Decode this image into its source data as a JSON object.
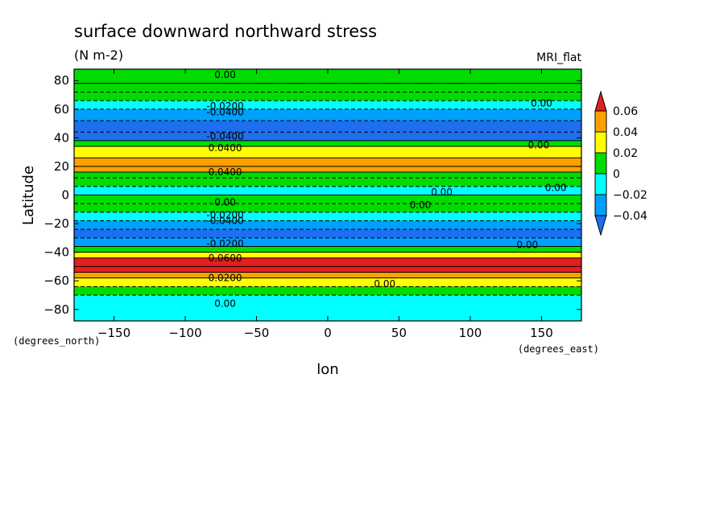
{
  "chart_data": {
    "type": "heatmap",
    "title": "surface downward northward stress",
    "units": "(N m-2)",
    "model_label": "MRI_flat",
    "xlabel": "lon",
    "ylabel": "Latitude",
    "x_units": "(degrees_east)",
    "y_units": "(degrees_north)",
    "xlim": [
      -178,
      178
    ],
    "ylim": [
      -88,
      88
    ],
    "x_ticks": [
      -150,
      -100,
      -50,
      0,
      50,
      100,
      150
    ],
    "y_ticks": [
      -80,
      -60,
      -40,
      -20,
      0,
      20,
      40,
      60,
      80
    ],
    "colorbar": {
      "levels": [
        -0.06,
        -0.04,
        -0.02,
        0,
        0.02,
        0.04,
        0.06
      ],
      "tick_labels": [
        "0.06",
        "0.04",
        "0.02",
        "0",
        "-0.02",
        "-0.04"
      ],
      "colors": {
        "below_-0.04": "#1e6ef0",
        "-0.04_-0.02": "#00a0ff",
        "-0.02_0": "#00ffff",
        "0_0.02": "#00dc00",
        "0.02_0.04": "#ffff00",
        "0.04_0.06": "#ffa000",
        "above_0.06": "#e61e1e"
      }
    },
    "zonal_profile": [
      {
        "lat": 88,
        "value": 0.005
      },
      {
        "lat": 78,
        "value": 0.005
      },
      {
        "lat": 72,
        "value": 0.004
      },
      {
        "lat": 66,
        "value": -0.01
      },
      {
        "lat": 60,
        "value": -0.03
      },
      {
        "lat": 52,
        "value": -0.05
      },
      {
        "lat": 44,
        "value": -0.045
      },
      {
        "lat": 38,
        "value": 0.01
      },
      {
        "lat": 34,
        "value": 0.03
      },
      {
        "lat": 26,
        "value": 0.045
      },
      {
        "lat": 20,
        "value": 0.045
      },
      {
        "lat": 16,
        "value": 0.01
      },
      {
        "lat": 12,
        "value": 0.005
      },
      {
        "lat": 6,
        "value": -0.01
      },
      {
        "lat": 0,
        "value": 0.005
      },
      {
        "lat": -6,
        "value": 0.005
      },
      {
        "lat": -12,
        "value": -0.01
      },
      {
        "lat": -18,
        "value": -0.03
      },
      {
        "lat": -24,
        "value": -0.045
      },
      {
        "lat": -30,
        "value": -0.03
      },
      {
        "lat": -36,
        "value": 0.01
      },
      {
        "lat": -40,
        "value": 0.03
      },
      {
        "lat": -44,
        "value": 0.06
      },
      {
        "lat": -50,
        "value": 0.07
      },
      {
        "lat": -54,
        "value": 0.05
      },
      {
        "lat": -58,
        "value": 0.02
      },
      {
        "lat": -64,
        "value": 0.005
      },
      {
        "lat": -70,
        "value": -0.01
      },
      {
        "lat": -88,
        "value": -0.01
      }
    ],
    "contour_labels": [
      "0.00",
      "-0.0200",
      "-0.0400",
      "0.0200",
      "0.0400",
      "0.0600"
    ],
    "grid": false,
    "legend": "right"
  }
}
